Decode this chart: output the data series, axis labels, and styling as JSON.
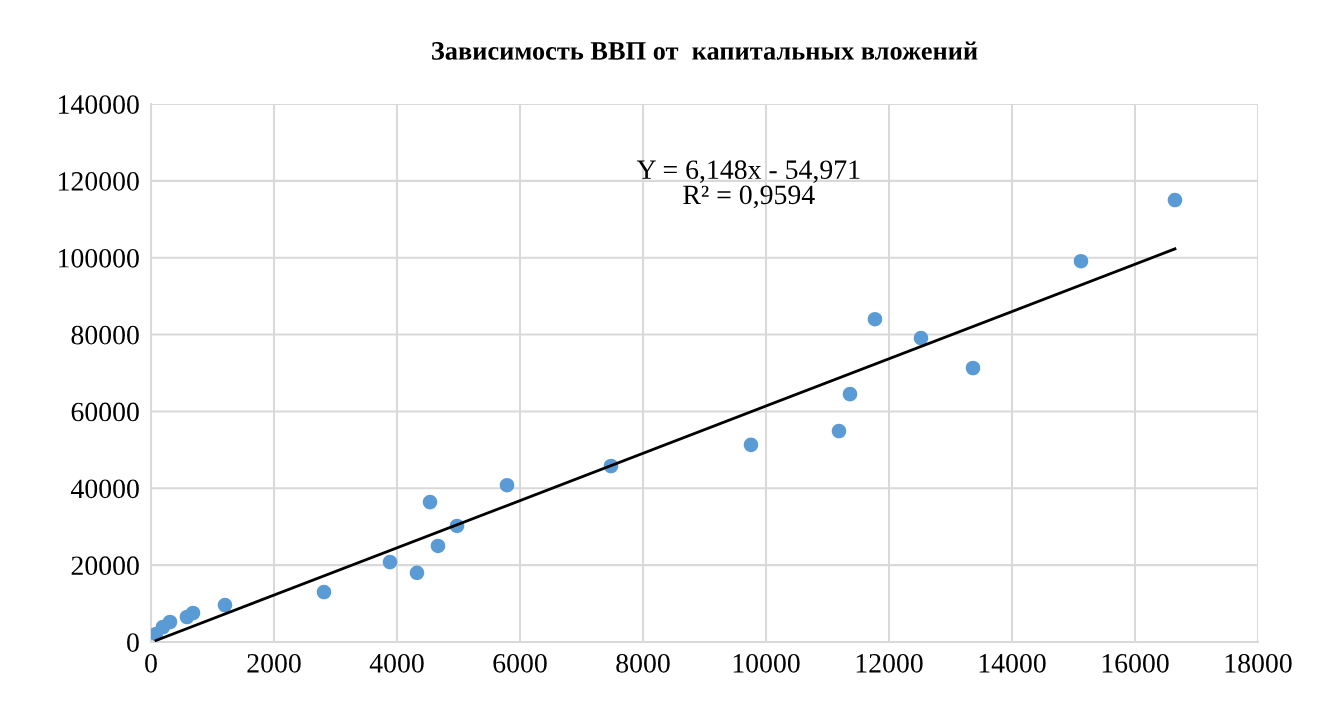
{
  "chart_data": {
    "type": "scatter",
    "title": "Зависимость ВВП от  капитальных вложений",
    "series": [
      {
        "color": "#5b9bd5",
        "marker": "circle",
        "x": [
          81,
          195,
          309,
          585,
          683,
          1203,
          2813,
          3886,
          4325,
          4537,
          4667,
          4976,
          5789,
          7480,
          9756,
          11187,
          11366,
          11772,
          12520,
          13366,
          15122,
          16650
        ],
        "values": [
          2100,
          3900,
          5200,
          6500,
          7550,
          9600,
          13000,
          20800,
          18000,
          36400,
          25000,
          30200,
          40800,
          45800,
          51300,
          54900,
          64500,
          84000,
          79100,
          71300,
          99100,
          115000
        ]
      },
      {
        "type": "line",
        "color": "#000000",
        "line_style": "solid",
        "x": [
          81,
          16650
        ],
        "values": [
          400,
          102300
        ]
      }
    ],
    "annotations": [
      "Y = 6,148x - 54,971\nR² = 0,9594"
    ],
    "xlim": [
      0,
      18000
    ],
    "xticks": [
      0,
      2000,
      4000,
      6000,
      8000,
      10000,
      12000,
      14000,
      16000,
      18000
    ],
    "ylim": [
      0,
      140000
    ],
    "yticks": [
      0,
      20000,
      40000,
      60000,
      80000,
      100000,
      120000,
      140000
    ],
    "grid": true,
    "legend": false
  }
}
